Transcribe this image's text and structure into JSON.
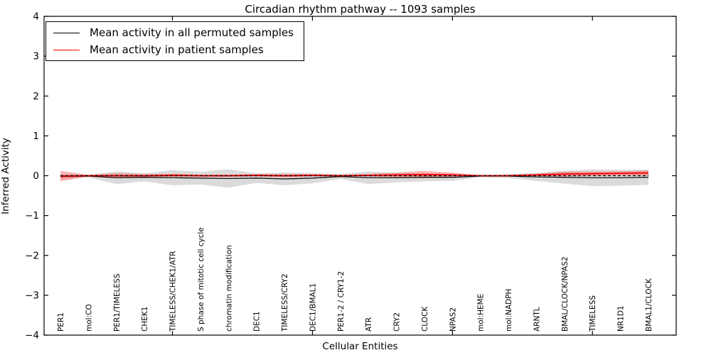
{
  "chart_data": {
    "type": "line",
    "title": "Circadian rhythm pathway -- 1093 samples",
    "xlabel": "Cellular Entities",
    "ylabel": "Inferred Activity",
    "ylim": [
      -4,
      4
    ],
    "grid": false,
    "legend_position": "upper left",
    "y_tick_values": [
      -4,
      -3,
      -2,
      -1,
      0,
      1,
      2,
      3,
      4
    ],
    "y_tick_labels": [
      "−4",
      "−3",
      "−2",
      "−1",
      "0",
      "1",
      "2",
      "3",
      "4"
    ],
    "x_major_tick_indices": [
      4,
      9,
      14,
      19
    ],
    "categories": [
      "PER1",
      "mol:CO",
      "PER1/TIMELESS",
      "CHEK1",
      "TIMELESS/CHEK1/ATR",
      "S phase of mitotic cell cycle",
      "chromatin modification",
      "DEC1",
      "TIMELESS/CRY2",
      "DEC1/BMAL1",
      "PER1-2 / CRY1-2",
      "ATR",
      "CRY2",
      "CLOCK",
      "NPAS2",
      "mol:HEME",
      "mol:NADPH",
      "ARNTL",
      "BMAL/CLOCK/NPAS2",
      "TIMELESS",
      "NR1D1",
      "BMAL1/CLOCK"
    ],
    "series": [
      {
        "name": "Mean activity in all permuted samples",
        "color": "#000000",
        "line_width": 1.2,
        "values": [
          -0.02,
          -0.01,
          -0.05,
          -0.04,
          -0.05,
          -0.06,
          -0.07,
          -0.06,
          -0.08,
          -0.06,
          -0.02,
          -0.05,
          -0.05,
          -0.04,
          -0.04,
          -0.01,
          -0.01,
          -0.03,
          -0.04,
          -0.05,
          -0.05,
          -0.04
        ],
        "band_halfwidth": [
          0.06,
          0.03,
          0.16,
          0.1,
          0.19,
          0.16,
          0.23,
          0.12,
          0.16,
          0.13,
          0.06,
          0.16,
          0.12,
          0.1,
          0.09,
          0.03,
          0.05,
          0.1,
          0.16,
          0.21,
          0.2,
          0.19
        ],
        "band_color": "rgba(110,110,110,0.25)"
      },
      {
        "name": "Mean activity in patient samples",
        "color": "#ff0000",
        "line_width": 1.8,
        "values": [
          -0.01,
          0.0,
          0.0,
          0.0,
          0.01,
          0.0,
          0.0,
          0.01,
          0.0,
          0.01,
          0.0,
          0.01,
          0.02,
          0.03,
          0.02,
          0.0,
          0.0,
          0.02,
          0.04,
          0.05,
          0.06,
          0.07
        ],
        "band_halfwidth": [
          0.13,
          0.02,
          0.06,
          0.04,
          0.04,
          0.03,
          0.03,
          0.03,
          0.04,
          0.03,
          0.02,
          0.03,
          0.06,
          0.09,
          0.06,
          0.01,
          0.02,
          0.03,
          0.06,
          0.05,
          0.05,
          0.06
        ],
        "band_color": "rgba(255,0,0,0.30)"
      }
    ],
    "zero_line": {
      "value": 0,
      "color": "#000000",
      "style": "dashed"
    }
  }
}
